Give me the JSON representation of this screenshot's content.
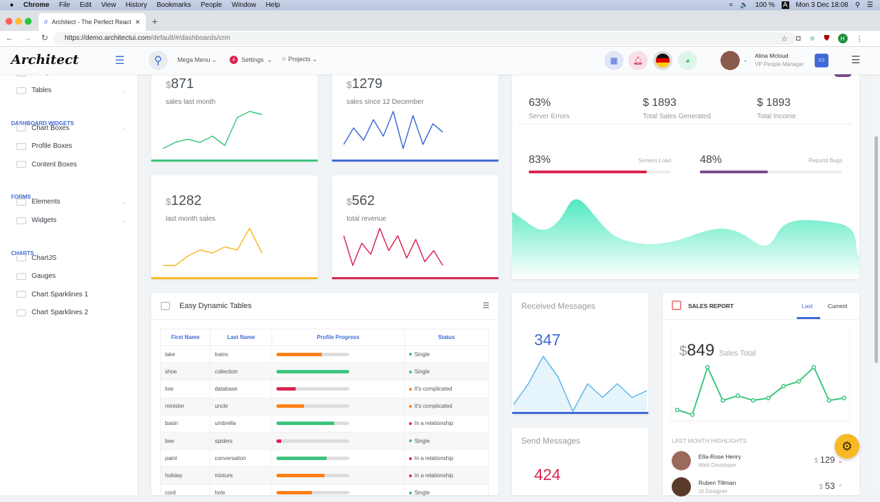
{
  "os": {
    "apple": "",
    "menus": [
      "Chrome",
      "File",
      "Edit",
      "View",
      "History",
      "Bookmarks",
      "People",
      "Window",
      "Help"
    ],
    "battery": "100 %",
    "input": "A",
    "clock": "Mon 3 Dec 18:08"
  },
  "browser": {
    "tab_title": "Architect - The Perfect ReactJ",
    "url_host": "https://demo.architectui.com",
    "url_path": "/default/#/dashboards/crm",
    "profile": "H"
  },
  "header": {
    "logo": "Architect",
    "mega_menu": "Mega Menu",
    "settings": "Settings",
    "settings_badge": "4",
    "projects": "Projects",
    "user_name": "Alina Mcloud",
    "user_role": "VP People Manager"
  },
  "sidebar": {
    "partial": "Components",
    "items": [
      {
        "type": "item",
        "label": "Tables"
      },
      {
        "type": "heading",
        "label": "Dashboard Widgets"
      },
      {
        "type": "item",
        "label": "Chart Boxes"
      },
      {
        "type": "item",
        "label": "Profile Boxes"
      },
      {
        "type": "item",
        "label": "Content Boxes"
      },
      {
        "type": "heading",
        "label": "Forms"
      },
      {
        "type": "item",
        "label": "Elements"
      },
      {
        "type": "item",
        "label": "Widgets"
      },
      {
        "type": "heading",
        "label": "Charts"
      },
      {
        "type": "item",
        "label": "ChartJS"
      },
      {
        "type": "item",
        "label": "Gauges"
      },
      {
        "type": "item",
        "label": "Chart Sparklines 1"
      },
      {
        "type": "item",
        "label": "Chart Sparklines 2"
      }
    ]
  },
  "widgets": [
    {
      "value": "871",
      "label": "sales last month",
      "color": "#3ac47d",
      "spark": [
        2,
        4,
        5,
        4,
        6,
        3,
        12,
        14,
        13
      ]
    },
    {
      "value": "1279",
      "label": "sales since 12 December",
      "color": "#3f6ad8",
      "spark": [
        3,
        7,
        4,
        9,
        5,
        11,
        2,
        10,
        3,
        8,
        6
      ]
    },
    {
      "value": "1282",
      "label": "last month sales",
      "color": "#f7b924",
      "spark": [
        1,
        1,
        4,
        6,
        5,
        7,
        6,
        13,
        5
      ]
    },
    {
      "value": "562",
      "label": "total revenue",
      "color": "#d92550",
      "spark": [
        10,
        2,
        8,
        5,
        12,
        6,
        10,
        4,
        9,
        3,
        6,
        2
      ]
    }
  ],
  "stats": {
    "items": [
      {
        "value": "63%",
        "label": "Server Errors"
      },
      {
        "value": "$ 1893",
        "label": "Total Sales Generated"
      },
      {
        "value": "$ 1893",
        "label": "Total Income"
      }
    ],
    "bars": [
      {
        "value": "83%",
        "label": "Servers Load",
        "pct": 83,
        "color": "#d92550"
      },
      {
        "value": "48%",
        "label": "Reportd Bugs",
        "pct": 48,
        "color": "#794c8a"
      }
    ]
  },
  "table": {
    "title": "Easy Dynamic Tables",
    "headers": [
      "First Name",
      "Last Name",
      "Profile Progress",
      "Status"
    ],
    "rows": [
      {
        "first": "lake",
        "last": "trains",
        "pct": 62,
        "color": "#fd7e14",
        "status": "Single",
        "scolor": "#3ac47d"
      },
      {
        "first": "shoe",
        "last": "collection",
        "pct": 100,
        "color": "#3ac47d",
        "status": "Single",
        "scolor": "#3ac47d"
      },
      {
        "first": "low",
        "last": "database",
        "pct": 27,
        "color": "#d92550",
        "status": "It's complicated",
        "scolor": "#fd7e14"
      },
      {
        "first": "minister",
        "last": "uncle",
        "pct": 38,
        "color": "#fd7e14",
        "status": "It's complicated",
        "scolor": "#fd7e14"
      },
      {
        "first": "basin",
        "last": "umbrella",
        "pct": 79,
        "color": "#3ac47d",
        "status": "In a relationship",
        "scolor": "#d92550"
      },
      {
        "first": "bee",
        "last": "spiders",
        "pct": 7,
        "color": "#d92550",
        "status": "Single",
        "scolor": "#3ac47d"
      },
      {
        "first": "paint",
        "last": "conversation",
        "pct": 69,
        "color": "#3ac47d",
        "status": "In a relationship",
        "scolor": "#d92550"
      },
      {
        "first": "holiday",
        "last": "mixture",
        "pct": 66,
        "color": "#fd7e14",
        "status": "In a relationship",
        "scolor": "#d92550"
      },
      {
        "first": "cord",
        "last": "hole",
        "pct": 49,
        "color": "#fd7e14",
        "status": "Single",
        "scolor": "#3ac47d"
      }
    ]
  },
  "received": {
    "title": "Received Messages",
    "value": "347",
    "spark": [
      2,
      5,
      9,
      6,
      1,
      5,
      3,
      5,
      3,
      4
    ]
  },
  "send": {
    "title": "Send Messages",
    "value": "424"
  },
  "sales_report": {
    "title": "SALES REPORT",
    "tabs": [
      "Last",
      "Current"
    ],
    "currency": "$",
    "value": "849",
    "label": "Sales Total",
    "spark": [
      3,
      2,
      12,
      5,
      6,
      5,
      5.5,
      8,
      9,
      12,
      5,
      5.5
    ],
    "highlights_title": "LAST MONTH HIGHLIGHTS",
    "people": [
      {
        "name": "Ella-Rose Henry",
        "role": "Web Developer",
        "amount": "129",
        "trend": "down"
      },
      {
        "name": "Ruben Tillman",
        "role": "UI Designer",
        "amount": "53",
        "trend": "up"
      }
    ]
  }
}
